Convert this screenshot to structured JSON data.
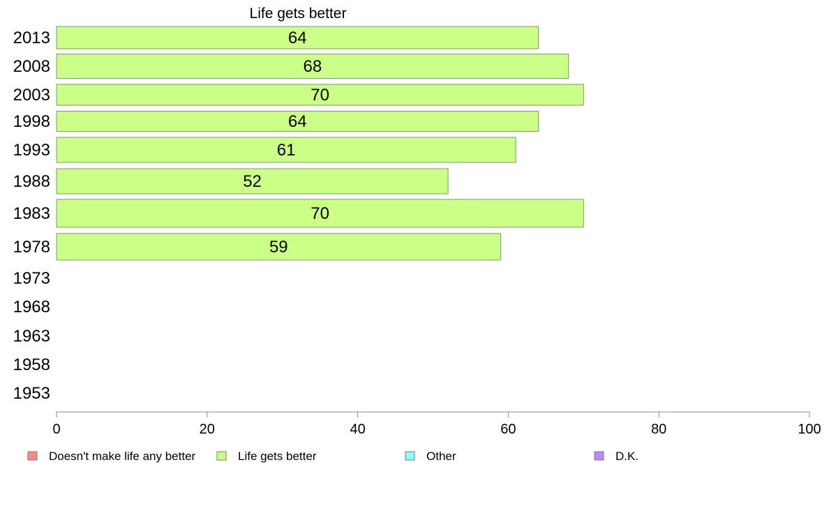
{
  "chart_data": {
    "type": "bar",
    "orientation": "horizontal",
    "title": "Life gets better",
    "categories": [
      "2013",
      "2008",
      "2003",
      "1998",
      "1993",
      "1988",
      "1983",
      "1978",
      "1973",
      "1968",
      "1963",
      "1958",
      "1953"
    ],
    "series": [
      {
        "name": "Life gets better",
        "color": "#ccff88",
        "values": [
          64,
          68,
          70,
          64,
          61,
          52,
          70,
          59,
          null,
          null,
          null,
          null,
          null
        ]
      }
    ],
    "xlim": [
      0,
      100
    ],
    "x_ticks": [
      "0",
      "20",
      "40",
      "60",
      "80",
      "100"
    ],
    "grid": false,
    "legend_position": "bottom",
    "legend": [
      {
        "label": "Doesn't make life any better",
        "color": "#ff8888"
      },
      {
        "label": "Life gets better",
        "color": "#ccff88"
      },
      {
        "label": "Other",
        "color": "#88ffff"
      },
      {
        "label": "D.K.",
        "color": "#bb88ff"
      }
    ]
  }
}
